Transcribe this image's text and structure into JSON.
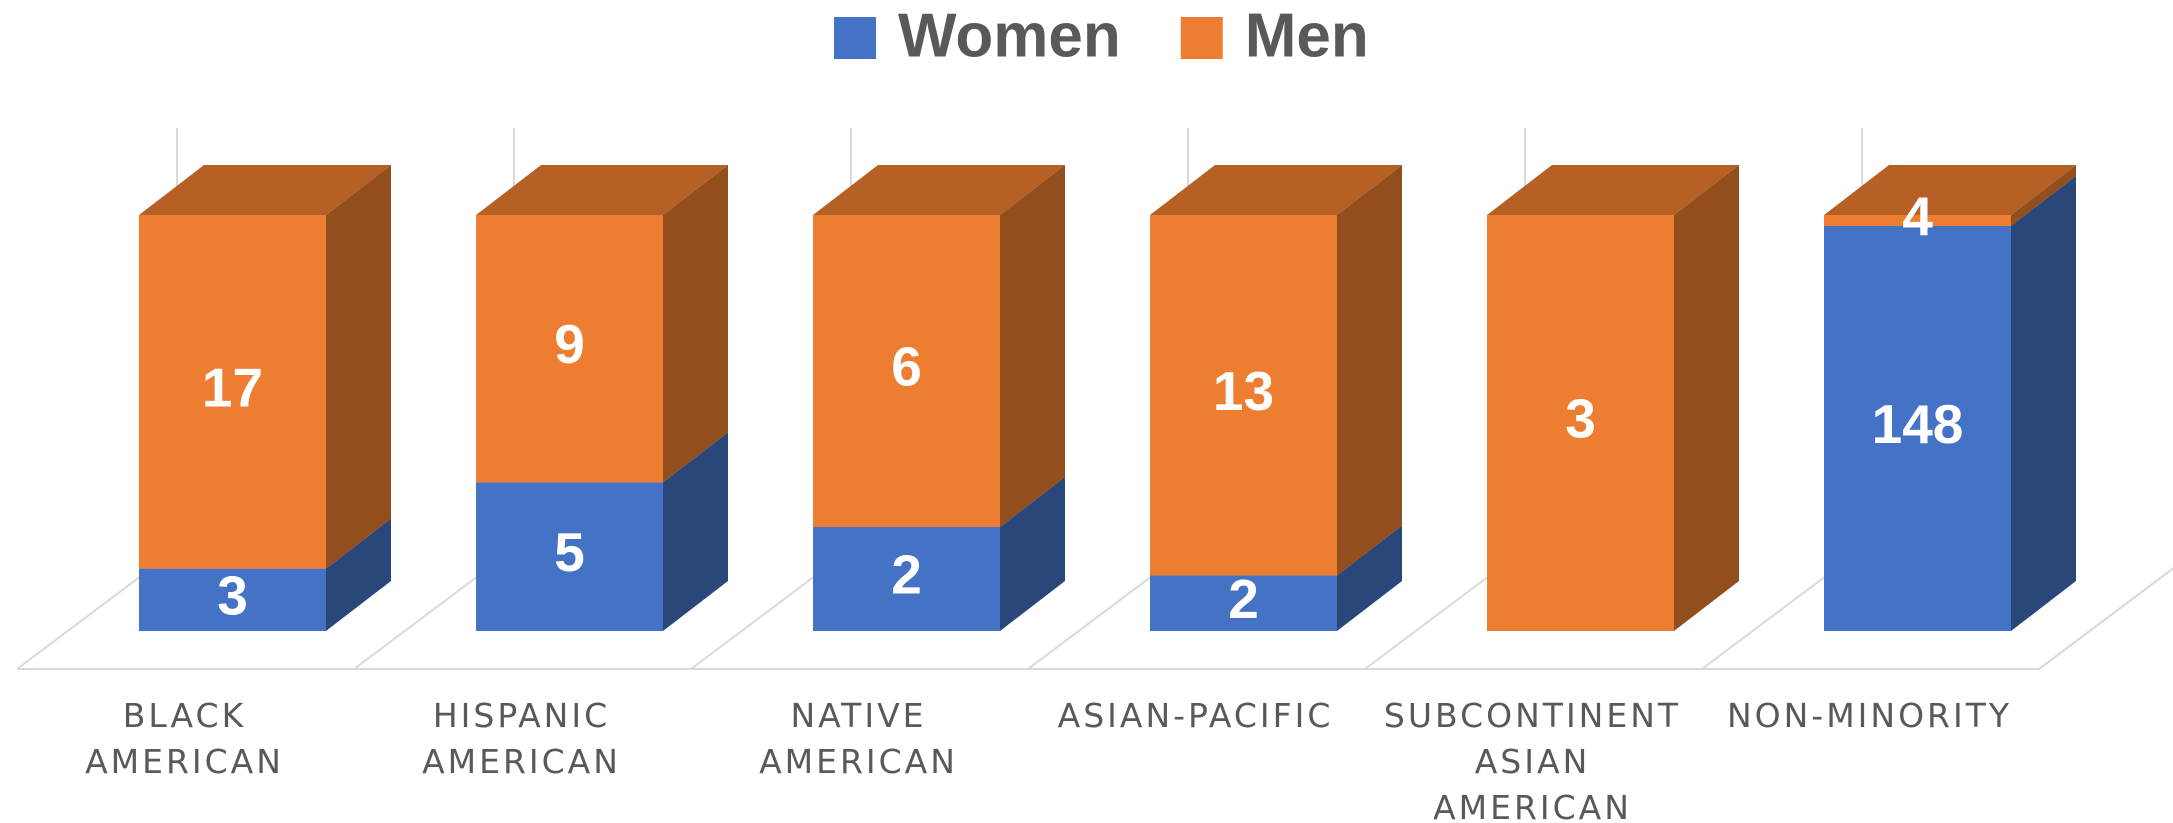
{
  "chart_data": {
    "type": "bar",
    "stacking": "percent",
    "categories": [
      "BLACK AMERICAN",
      "HISPANIC AMERICAN",
      "NATIVE AMERICAN",
      "ASIAN-PACIFIC",
      "SUBCONTINENT ASIAN AMERICAN",
      "NON-MINORITY"
    ],
    "series": [
      {
        "name": "Women",
        "color": "#4472c4",
        "values": [
          3,
          5,
          2,
          2,
          0,
          148
        ]
      },
      {
        "name": "Men",
        "color": "#ed7d31",
        "values": [
          17,
          9,
          6,
          13,
          3,
          4
        ]
      }
    ],
    "legend": "top"
  }
}
